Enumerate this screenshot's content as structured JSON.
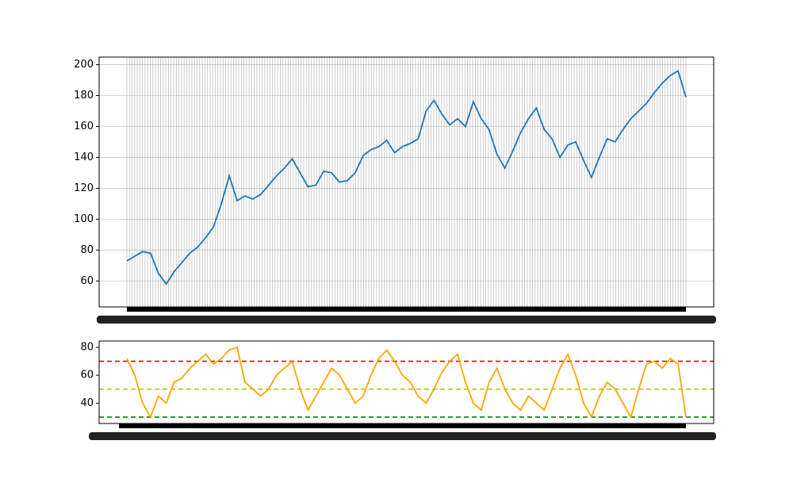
{
  "chart_data": [
    {
      "type": "line",
      "grid": true,
      "series": [
        {
          "color": "#1f77b4",
          "values": [
            73,
            76,
            79,
            78,
            65,
            58,
            66,
            72,
            78,
            82,
            88,
            95,
            110,
            128,
            112,
            115,
            113,
            116,
            122,
            128,
            133,
            139,
            130,
            121,
            122,
            131,
            130,
            124,
            125,
            130,
            141,
            145,
            147,
            151,
            143,
            147,
            149,
            152,
            170,
            177,
            168,
            161,
            165,
            160,
            176,
            165,
            158,
            142,
            133,
            144,
            156,
            165,
            172,
            158,
            152,
            140,
            148,
            150,
            138,
            127,
            140,
            152,
            150,
            158,
            165,
            170,
            175,
            182,
            188,
            193,
            196,
            179
          ]
        }
      ],
      "ylim": [
        43.2,
        204.9
      ],
      "yticks": [
        60,
        80,
        100,
        120,
        140,
        160,
        180,
        200
      ]
    },
    {
      "type": "line",
      "series": [
        {
          "color": "#ffa500",
          "values": [
            72,
            60,
            40,
            30,
            45,
            40,
            55,
            58,
            65,
            70,
            75,
            68,
            72,
            78,
            80,
            55,
            50,
            45,
            50,
            60,
            65,
            70,
            50,
            35,
            45,
            55,
            65,
            60,
            50,
            40,
            45,
            60,
            72,
            78,
            70,
            60,
            55,
            45,
            40,
            50,
            62,
            70,
            75,
            55,
            40,
            35,
            55,
            65,
            50,
            40,
            35,
            45,
            40,
            35,
            50,
            65,
            75,
            60,
            40,
            30,
            45,
            55,
            50,
            40,
            30,
            50,
            68,
            70,
            65,
            72,
            68,
            30
          ]
        }
      ],
      "hlines": [
        {
          "value": 70,
          "color": "#ff0000"
        },
        {
          "value": 50,
          "color": "#bfbf00"
        },
        {
          "value": 30,
          "color": "#008000"
        }
      ],
      "ylim": [
        25.4,
        84.5
      ],
      "yticks": [
        40,
        60,
        80
      ]
    }
  ]
}
